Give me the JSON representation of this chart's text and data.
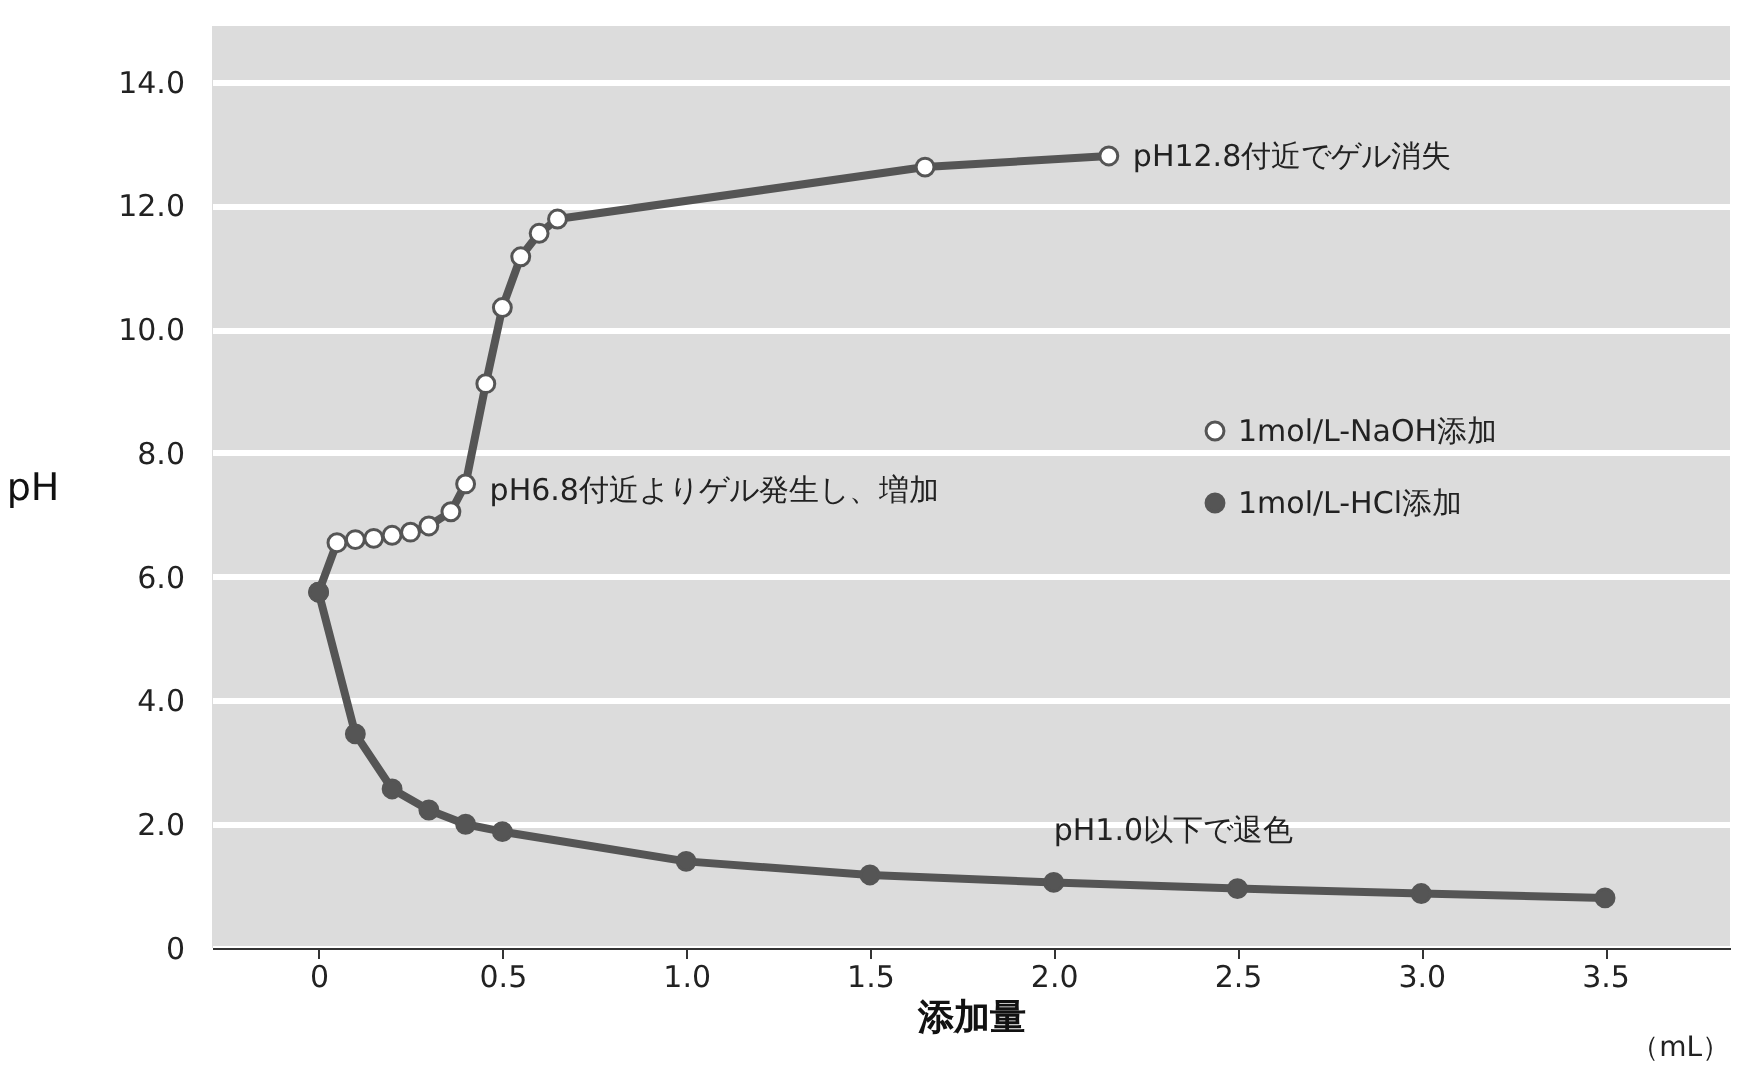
{
  "chart_data": {
    "type": "line",
    "xlabel": "添加量",
    "ylabel": "pH",
    "xlim": [
      -0.29,
      3.84
    ],
    "ylim": [
      0,
      14.9
    ],
    "xticks": [
      0,
      0.5,
      {
        "value": 1,
        "label": "1.0"
      },
      1.5,
      {
        "value": 2,
        "label": "2.0"
      },
      2.5,
      {
        "value": 3,
        "label": "3.0"
      },
      3.5
    ],
    "yticks": [
      0,
      {
        "value": 2,
        "label": "2.0"
      },
      {
        "value": 4,
        "label": "4.0"
      },
      {
        "value": 6,
        "label": "6.0"
      },
      {
        "value": 8,
        "label": "8.0"
      },
      {
        "value": 10,
        "label": "10.0"
      },
      {
        "value": 12,
        "label": "12.0"
      },
      {
        "value": 14,
        "label": "14.0"
      }
    ],
    "grid": "y",
    "legend": "right",
    "marker": "circle",
    "line_style": "solid",
    "series": [
      {
        "name": "1mol/L-NaOH添加",
        "color": "#555555",
        "x": [
          0,
          0.05,
          0.1,
          0.15,
          0.2,
          0.25,
          0.3,
          0.36,
          0.4,
          0.455,
          0.5,
          0.55,
          0.6,
          0.65,
          1.65,
          2.15
        ],
        "values": [
          5.75,
          6.55,
          6.6,
          6.62,
          6.67,
          6.72,
          6.82,
          7.05,
          7.5,
          9.12,
          10.35,
          11.17,
          11.55,
          11.78,
          12.62,
          12.8
        ]
      },
      {
        "name": "1mol/L-HCl添加",
        "color": "#555555",
        "x": [
          0,
          0.1,
          0.2,
          0.3,
          0.4,
          0.5,
          1.0,
          1.5,
          2.0,
          2.5,
          3.0,
          3.5
        ],
        "values": [
          5.75,
          3.46,
          2.57,
          2.23,
          2.0,
          1.88,
          1.4,
          1.18,
          1.06,
          0.96,
          0.88,
          0.81
        ]
      }
    ],
    "annotations": [
      {
        "text": "pH12.8付近でゲル消失",
        "x": 2.15,
        "y": 12.8
      },
      {
        "text": "pH6.8付近よりゲル発生し、増加",
        "x": 0.4,
        "y": 7.5
      },
      {
        "text": "pH1.0以下で退色",
        "x": 2.0,
        "y": 1.06
      },
      "（mL）"
    ]
  }
}
